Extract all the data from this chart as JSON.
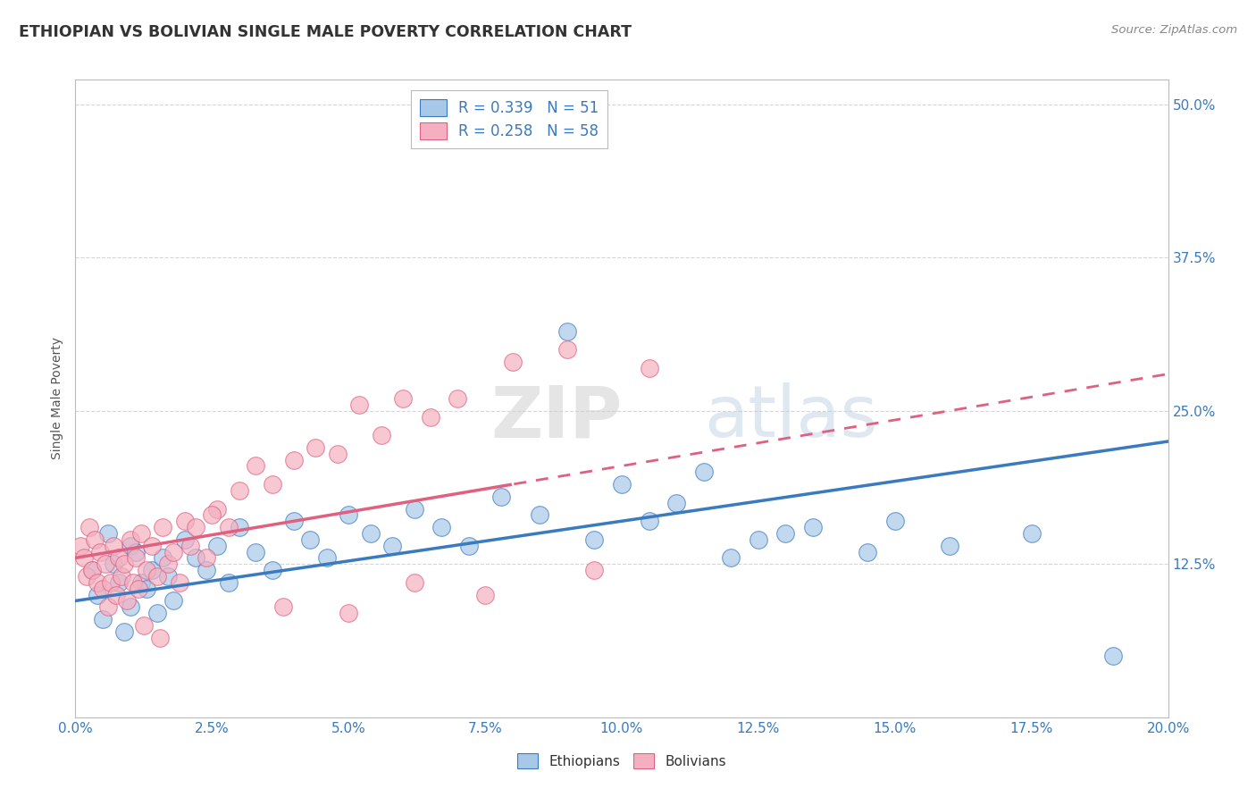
{
  "title": "ETHIOPIAN VS BOLIVIAN SINGLE MALE POVERTY CORRELATION CHART",
  "source": "Source: ZipAtlas.com",
  "xlabel_ticks": [
    "0.0%",
    "2.5%",
    "5.0%",
    "7.5%",
    "10.0%",
    "12.5%",
    "15.0%",
    "17.5%",
    "20.0%"
  ],
  "xlabel_vals": [
    0.0,
    2.5,
    5.0,
    7.5,
    10.0,
    12.5,
    15.0,
    17.5,
    20.0
  ],
  "xlim": [
    0.0,
    20.0
  ],
  "ylim": [
    0.0,
    52.0
  ],
  "ylabel": "Single Male Poverty",
  "ylabel_right_ticks": [
    0.0,
    12.5,
    25.0,
    37.5,
    50.0
  ],
  "ylabel_right_labels": [
    "",
    "12.5%",
    "25.0%",
    "37.5%",
    "50.0%"
  ],
  "color_ethiopians": "#a8c8e8",
  "color_bolivians": "#f4b0c0",
  "color_line_ethiopians": "#3a7abf",
  "color_line_bolivians": "#e06080",
  "R_ethiopians": 0.339,
  "N_ethiopians": 51,
  "R_bolivians": 0.258,
  "N_bolivians": 58,
  "watermark": "ZIPatlas",
  "eth_trend_x0": 0.0,
  "eth_trend_y0": 9.5,
  "eth_trend_x1": 20.0,
  "eth_trend_y1": 22.5,
  "bol_trend_x0": 0.0,
  "bol_trend_y0": 13.0,
  "bol_trend_x1": 20.0,
  "bol_trend_y1": 28.0,
  "ethiopians_x": [
    0.3,
    0.4,
    0.5,
    0.6,
    0.7,
    0.8,
    0.9,
    1.0,
    1.0,
    1.1,
    1.2,
    1.3,
    1.4,
    1.5,
    1.6,
    1.7,
    1.8,
    2.0,
    2.2,
    2.4,
    2.6,
    2.8,
    3.0,
    3.3,
    3.6,
    4.0,
    4.3,
    4.6,
    5.0,
    5.4,
    5.8,
    6.2,
    6.7,
    7.2,
    7.8,
    8.5,
    9.0,
    9.5,
    10.0,
    10.5,
    11.0,
    11.5,
    12.0,
    12.5,
    13.0,
    13.5,
    14.5,
    15.0,
    16.0,
    17.5,
    19.0
  ],
  "ethiopians_y": [
    12.0,
    10.0,
    8.0,
    15.0,
    12.5,
    11.0,
    7.0,
    14.0,
    9.0,
    13.5,
    11.0,
    10.5,
    12.0,
    8.5,
    13.0,
    11.5,
    9.5,
    14.5,
    13.0,
    12.0,
    14.0,
    11.0,
    15.5,
    13.5,
    12.0,
    16.0,
    14.5,
    13.0,
    16.5,
    15.0,
    14.0,
    17.0,
    15.5,
    14.0,
    18.0,
    16.5,
    31.5,
    14.5,
    19.0,
    16.0,
    17.5,
    20.0,
    13.0,
    14.5,
    15.0,
    15.5,
    13.5,
    16.0,
    14.0,
    15.0,
    5.0
  ],
  "bolivians_x": [
    0.1,
    0.15,
    0.2,
    0.25,
    0.3,
    0.35,
    0.4,
    0.45,
    0.5,
    0.55,
    0.6,
    0.65,
    0.7,
    0.75,
    0.8,
    0.85,
    0.9,
    0.95,
    1.0,
    1.05,
    1.1,
    1.15,
    1.2,
    1.3,
    1.4,
    1.5,
    1.6,
    1.7,
    1.8,
    1.9,
    2.0,
    2.1,
    2.2,
    2.4,
    2.6,
    2.8,
    3.0,
    3.3,
    3.6,
    4.0,
    4.4,
    4.8,
    5.2,
    5.6,
    6.0,
    6.5,
    7.0,
    8.0,
    9.0,
    10.5,
    1.25,
    1.55,
    2.5,
    3.8,
    5.0,
    6.2,
    7.5,
    9.5
  ],
  "bolivians_y": [
    14.0,
    13.0,
    11.5,
    15.5,
    12.0,
    14.5,
    11.0,
    13.5,
    10.5,
    12.5,
    9.0,
    11.0,
    14.0,
    10.0,
    13.0,
    11.5,
    12.5,
    9.5,
    14.5,
    11.0,
    13.0,
    10.5,
    15.0,
    12.0,
    14.0,
    11.5,
    15.5,
    12.5,
    13.5,
    11.0,
    16.0,
    14.0,
    15.5,
    13.0,
    17.0,
    15.5,
    18.5,
    20.5,
    19.0,
    21.0,
    22.0,
    21.5,
    25.5,
    23.0,
    26.0,
    24.5,
    26.0,
    29.0,
    30.0,
    28.5,
    7.5,
    6.5,
    16.5,
    9.0,
    8.5,
    11.0,
    10.0,
    12.0
  ]
}
